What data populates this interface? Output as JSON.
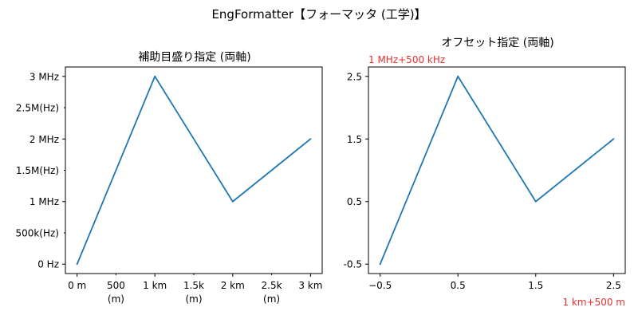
{
  "figure": {
    "suptitle": "EngFormatter【フォーマッタ (工学)】"
  },
  "chart_data": [
    {
      "type": "line",
      "title": "補助目盛り指定 (両軸)",
      "x": [
        0,
        1000,
        2000,
        3000
      ],
      "y": [
        0,
        3000000,
        1000000,
        2000000
      ],
      "xlim": [
        -150,
        3150
      ],
      "ylim": [
        -150000,
        3150000
      ],
      "x_major_ticks": [
        {
          "value": 0,
          "label": "0 m"
        },
        {
          "value": 1000,
          "label": "1 km"
        },
        {
          "value": 2000,
          "label": "2 km"
        },
        {
          "value": 3000,
          "label": "3 km"
        }
      ],
      "x_minor_ticks": [
        {
          "value": 500,
          "label": "500",
          "sub": "(m)"
        },
        {
          "value": 1500,
          "label": "1.5k",
          "sub": "(m)"
        },
        {
          "value": 2500,
          "label": "2.5k",
          "sub": "(m)"
        }
      ],
      "y_major_ticks": [
        {
          "value": 0,
          "label": "0 Hz"
        },
        {
          "value": 1000000,
          "label": "1 MHz"
        },
        {
          "value": 2000000,
          "label": "2 MHz"
        },
        {
          "value": 3000000,
          "label": "3 MHz"
        }
      ],
      "y_minor_ticks": [
        {
          "value": 500000,
          "label": "500k(Hz)"
        },
        {
          "value": 1500000,
          "label": "1.5M(Hz)"
        },
        {
          "value": 2500000,
          "label": "2.5M(Hz)"
        }
      ],
      "grid": false,
      "series_color": "#1f77b4"
    },
    {
      "type": "line",
      "title": "オフセット指定 (両軸)",
      "x": [
        -0.5,
        0.5,
        1.5,
        2.5
      ],
      "y": [
        -0.5,
        2.5,
        0.5,
        1.5
      ],
      "xlim": [
        -0.65,
        2.65
      ],
      "ylim": [
        -0.65,
        2.65
      ],
      "x_major_ticks": [
        {
          "value": -0.5,
          "label": "−0.5"
        },
        {
          "value": 0.5,
          "label": "0.5"
        },
        {
          "value": 1.5,
          "label": "1.5"
        },
        {
          "value": 2.5,
          "label": "2.5"
        }
      ],
      "y_major_ticks": [
        {
          "value": -0.5,
          "label": "-0.5"
        },
        {
          "value": 0.5,
          "label": "0.5"
        },
        {
          "value": 1.5,
          "label": "1.5"
        },
        {
          "value": 2.5,
          "label": "2.5"
        }
      ],
      "x_offset_text": "1 km+500 m",
      "y_offset_text": "1 MHz+500 kHz",
      "offset_color": "#e8312f",
      "grid": false,
      "series_color": "#1f77b4"
    }
  ]
}
